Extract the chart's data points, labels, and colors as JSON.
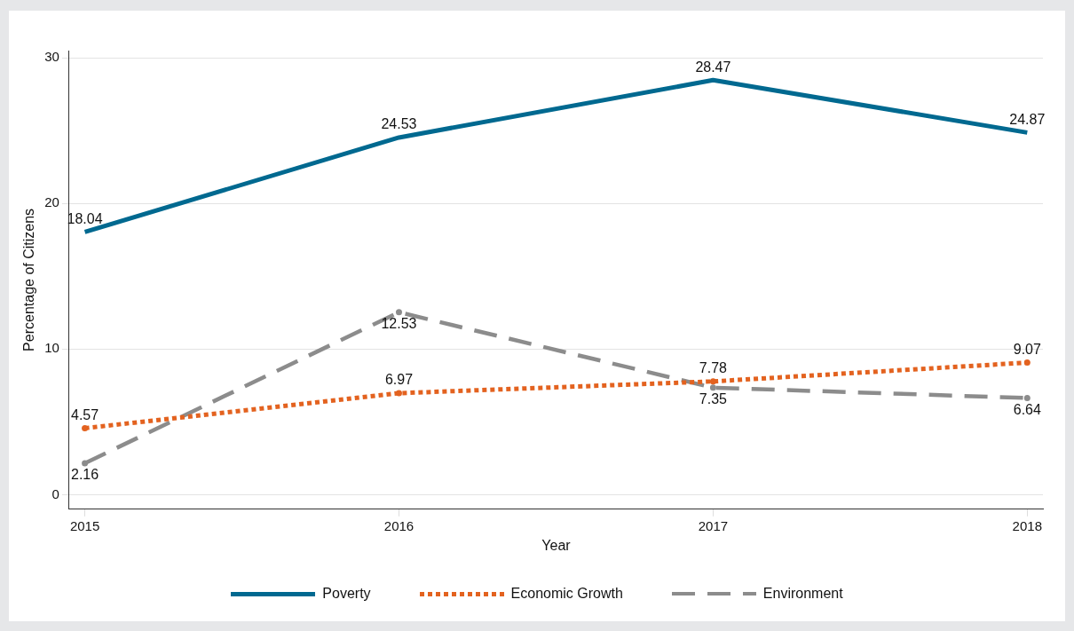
{
  "chart_data": {
    "type": "line",
    "xlabel": "Year",
    "ylabel": "Percentage of Citizens",
    "x": [
      2015,
      2016,
      2017,
      2018
    ],
    "xlim": [
      2014.95,
      2018.05
    ],
    "xticks": [
      2015,
      2016,
      2017,
      2018
    ],
    "ylim": [
      -1,
      30.5
    ],
    "yticks": [
      0,
      10,
      20,
      30
    ],
    "grid": "y",
    "legend": "bottom",
    "data_labels": true,
    "series": [
      {
        "name": "Poverty",
        "color": "#006990",
        "line_style": "solid",
        "marker": "none",
        "values": [
          18.04,
          24.53,
          28.47,
          24.87
        ]
      },
      {
        "name": "Economic Growth",
        "color": "#e3621f",
        "line_style": "dotted",
        "marker": "circle",
        "values": [
          4.57,
          6.97,
          7.78,
          9.07
        ]
      },
      {
        "name": "Environment",
        "color": "#8c8c8c",
        "line_style": "dashed",
        "marker": "circle",
        "values": [
          2.16,
          12.53,
          7.35,
          6.64
        ]
      }
    ]
  }
}
